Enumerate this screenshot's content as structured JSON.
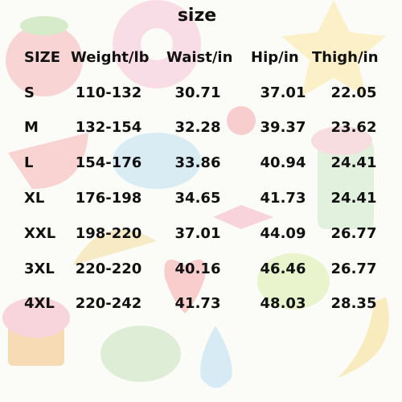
{
  "title": "size",
  "table": {
    "header": [
      "SIZE",
      "Weight/lb",
      "Waist/in",
      "Hip/in",
      "Thigh/in"
    ],
    "rows": [
      [
        "S",
        "110-132",
        "30.71",
        "37.01",
        "22.05"
      ],
      [
        "M",
        "132-154",
        "32.28",
        "39.37",
        "23.62"
      ],
      [
        "L",
        "154-176",
        "33.86",
        "40.94",
        "24.41"
      ],
      [
        "XL",
        "176-198",
        "34.65",
        "41.73",
        "24.41"
      ],
      [
        "XXL",
        "198-220",
        "37.01",
        "44.09",
        "26.77"
      ],
      [
        "3XL",
        "220-220",
        "40.16",
        "46.46",
        "26.77"
      ],
      [
        "4XL",
        "220-242",
        "41.73",
        "48.03",
        "28.35"
      ]
    ]
  }
}
